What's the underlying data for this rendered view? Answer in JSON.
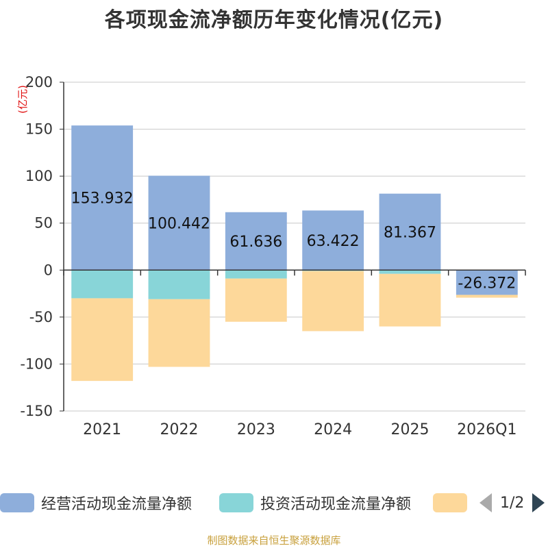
{
  "title": "各项现金流净额历年变化情况(亿元)",
  "chart_data": {
    "type": "bar",
    "stacked": true,
    "title": "各项现金流净额历年变化情况(亿元)",
    "ylabel": "(亿元)",
    "ylim": [
      -150,
      200
    ],
    "yticks": [
      -150,
      -100,
      -50,
      0,
      50,
      100,
      150,
      200
    ],
    "categories": [
      "2021",
      "2022",
      "2023",
      "2024",
      "2025",
      "2026Q1"
    ],
    "series": [
      {
        "name": "经营活动现金流量净额",
        "color": "#8eaedb",
        "values": [
          153.932,
          100.442,
          61.636,
          63.422,
          81.367,
          -26.372
        ],
        "show_labels": true
      },
      {
        "name": "投资活动现金流量净额",
        "color": "#88d5d8",
        "values": [
          -30,
          -31,
          -9,
          -1,
          -4,
          0
        ],
        "show_labels": false
      },
      {
        "name": "",
        "color": "#fdd89a",
        "values": [
          -88,
          -72,
          -46,
          -64,
          -56,
          -3
        ],
        "show_labels": false
      }
    ],
    "data_labels": [
      "153.932",
      "100.442",
      "61.636",
      "63.422",
      "81.367",
      "-26.372"
    ],
    "legend_position": "bottom",
    "grid": true
  },
  "legend": {
    "items": [
      {
        "label": "经营活动现金流量净额",
        "color": "#8eaedb"
      },
      {
        "label": "投资活动现金流量净额",
        "color": "#88d5d8"
      },
      {
        "label": "",
        "color": "#fdd89a"
      }
    ],
    "page": "1/2"
  },
  "source": "制图数据来自恒生聚源数据库"
}
